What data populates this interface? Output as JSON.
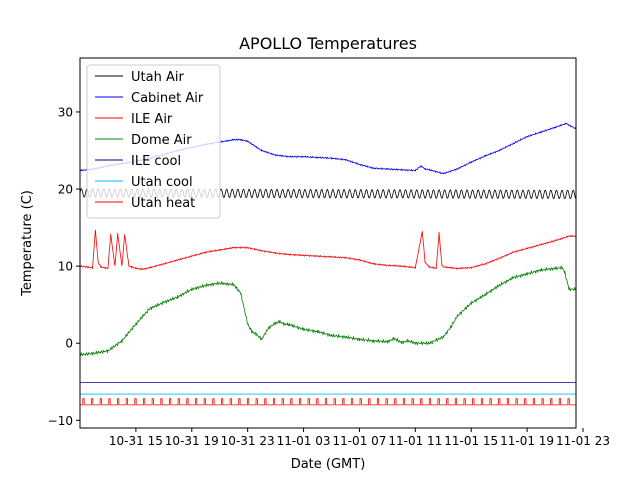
{
  "chart_data": {
    "type": "line",
    "title": "APOLLO Temperatures",
    "xlabel": "Date (GMT)",
    "ylabel": "Temperature (C)",
    "xlim": [
      0,
      35.5
    ],
    "ylim": [
      -11,
      37
    ],
    "x_unit": "hours since 10-31 10:00 GMT",
    "grid": false,
    "legend_position": "top-left",
    "xticks": [
      {
        "x": 4,
        "label": "10-31 15"
      },
      {
        "x": 8,
        "label": "10-31 19"
      },
      {
        "x": 12,
        "label": "10-31 23"
      },
      {
        "x": 16,
        "label": "11-01 03"
      },
      {
        "x": 20,
        "label": "11-01 07"
      },
      {
        "x": 24,
        "label": "11-01 11"
      },
      {
        "x": 28,
        "label": "11-01 15"
      },
      {
        "x": 32,
        "label": "11-01 19"
      },
      {
        "x": 36,
        "label": "11-01 23"
      }
    ],
    "yticks": [
      {
        "y": -10,
        "label": "−10"
      },
      {
        "y": 0,
        "label": "0"
      },
      {
        "y": 10,
        "label": "10"
      },
      {
        "y": 20,
        "label": "20"
      },
      {
        "y": 30,
        "label": "30"
      }
    ],
    "series": [
      {
        "name": "Utah Air",
        "color": "#000000",
        "style": "oscillating",
        "amplitude": 0.55,
        "period": 0.4,
        "x": [
          0,
          35.5
        ],
        "y": [
          19.5,
          19.3
        ]
      },
      {
        "name": "Cabinet Air",
        "color": "#0000ff",
        "style": "line",
        "x": [
          0,
          1,
          2,
          3,
          4,
          5,
          6,
          7,
          8,
          9,
          10,
          11,
          11.5,
          12,
          13,
          14,
          15,
          16,
          17,
          18,
          19,
          20,
          21,
          22,
          23,
          24,
          24.4,
          24.7,
          25,
          26,
          27,
          28,
          29,
          30,
          31,
          32,
          33,
          34,
          34.8,
          35.5
        ],
        "y": [
          22.4,
          22.6,
          23,
          23.3,
          23.6,
          24,
          24.5,
          25,
          25.4,
          25.8,
          26.1,
          26.4,
          26.4,
          26.2,
          25,
          24.4,
          24.2,
          24.2,
          24.1,
          24,
          23.8,
          23.2,
          22.7,
          22.6,
          22.5,
          22.4,
          23,
          22.6,
          22.5,
          22,
          22.6,
          23.5,
          24.3,
          25,
          25.9,
          26.8,
          27.4,
          28,
          28.5,
          27.8
        ]
      },
      {
        "name": "ILE Air",
        "color": "#ff0000",
        "style": "line",
        "x": [
          0,
          0.9,
          1.1,
          1.3,
          1.5,
          2,
          2.2,
          2.5,
          2.7,
          3,
          3.2,
          3.5,
          3.7,
          4,
          4.5,
          5,
          6,
          7,
          8,
          9,
          10,
          11,
          12,
          12.5,
          13,
          14,
          15,
          16,
          17,
          18,
          19,
          20,
          21,
          22,
          23,
          24,
          24.5,
          24.7,
          25,
          25.5,
          25.7,
          25.9,
          26,
          27,
          28,
          29,
          30,
          31,
          32,
          33,
          34,
          35,
          35.5
        ],
        "y": [
          10,
          9.8,
          14.7,
          10.5,
          9.9,
          9.7,
          14.1,
          10,
          14.2,
          10,
          14.1,
          10,
          9.9,
          9.7,
          9.6,
          9.8,
          10.3,
          10.8,
          11.3,
          11.8,
          12.1,
          12.4,
          12.4,
          12.2,
          12,
          11.7,
          11.5,
          11.4,
          11.3,
          11.2,
          11.1,
          10.8,
          10.3,
          10.1,
          10,
          9.8,
          14.5,
          10.5,
          9.9,
          9.7,
          14.3,
          10.2,
          9.9,
          9.7,
          9.8,
          10.3,
          11,
          11.8,
          12.3,
          12.8,
          13.3,
          13.9,
          13.9
        ]
      },
      {
        "name": "Dome Air",
        "color": "#008000",
        "style": "line",
        "x": [
          0,
          1,
          2,
          3,
          4,
          5,
          6,
          7,
          8,
          9,
          10,
          11,
          11.5,
          12,
          12.3,
          12.6,
          13,
          13.5,
          14,
          14.3,
          14.6,
          15,
          16,
          17,
          18,
          19,
          20,
          21,
          22,
          22.5,
          23,
          23.5,
          24,
          25,
          26,
          26.5,
          27,
          28,
          29,
          30,
          31,
          32,
          33,
          34,
          34.5,
          34.7,
          35,
          35.5
        ],
        "y": [
          -1.5,
          -1.3,
          -1,
          0.3,
          2.5,
          4.5,
          5.3,
          6,
          7,
          7.5,
          7.8,
          7.6,
          6.5,
          2.5,
          1.5,
          1.2,
          0.5,
          2,
          2.6,
          2.8,
          2.5,
          2.4,
          1.8,
          1.5,
          1,
          0.8,
          0.5,
          0.3,
          0.2,
          0.6,
          0.1,
          0.3,
          0,
          0,
          0.8,
          2,
          3.5,
          5.2,
          6.3,
          7.5,
          8.5,
          9,
          9.5,
          9.7,
          9.8,
          9.2,
          7,
          7
        ]
      },
      {
        "name": "ILE cool",
        "color": "#00008b",
        "style": "line",
        "x": [
          0,
          35.5
        ],
        "y": [
          -5.1,
          -5.1
        ]
      },
      {
        "name": "Utah cool",
        "color": "#00bfff",
        "style": "line",
        "x": [
          0,
          35.5
        ],
        "y": [
          -6.6,
          -6.6
        ]
      },
      {
        "name": "Utah heat",
        "color": "#ff0000",
        "style": "pulse",
        "x": [
          0,
          35.5
        ],
        "y": [
          -8,
          -7.2
        ],
        "period": 0.62
      }
    ]
  }
}
